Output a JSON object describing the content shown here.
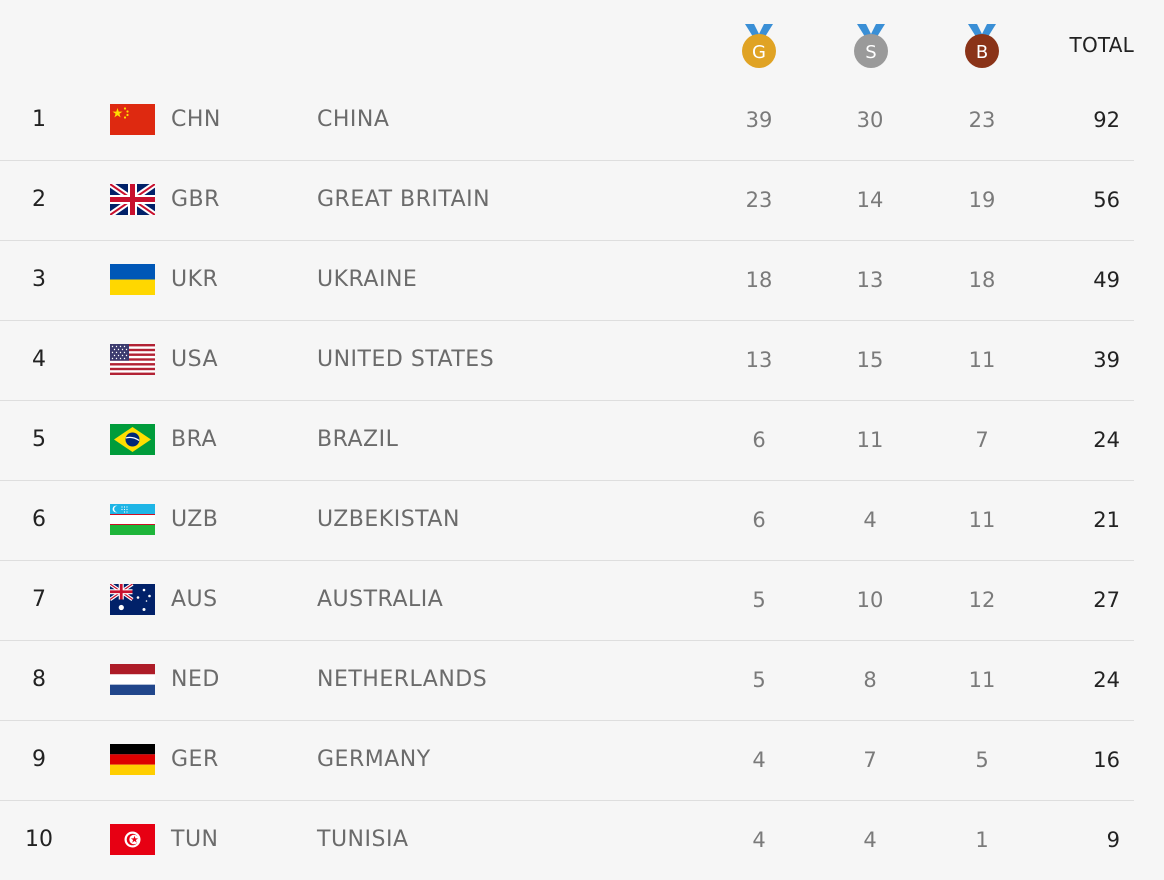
{
  "header": {
    "gold_letter": "G",
    "silver_letter": "S",
    "bronze_letter": "B",
    "total_label": "TOTAL",
    "medal_colors": {
      "gold": "#e0a324",
      "silver": "#9a9a9a",
      "bronze": "#8a3318",
      "ribbon": "#3a8fd6"
    }
  },
  "rows": [
    {
      "rank": "1",
      "flag": "flag-china-icon",
      "code": "CHN",
      "country": "CHINA",
      "gold": "39",
      "silver": "30",
      "bronze": "23",
      "total": "92"
    },
    {
      "rank": "2",
      "flag": "flag-great-britain-icon",
      "code": "GBR",
      "country": "GREAT BRITAIN",
      "gold": "23",
      "silver": "14",
      "bronze": "19",
      "total": "56"
    },
    {
      "rank": "3",
      "flag": "flag-ukraine-icon",
      "code": "UKR",
      "country": "UKRAINE",
      "gold": "18",
      "silver": "13",
      "bronze": "18",
      "total": "49"
    },
    {
      "rank": "4",
      "flag": "flag-usa-icon",
      "code": "USA",
      "country": "UNITED STATES",
      "gold": "13",
      "silver": "15",
      "bronze": "11",
      "total": "39"
    },
    {
      "rank": "5",
      "flag": "flag-brazil-icon",
      "code": "BRA",
      "country": "BRAZIL",
      "gold": "6",
      "silver": "11",
      "bronze": "7",
      "total": "24"
    },
    {
      "rank": "6",
      "flag": "flag-uzbekistan-icon",
      "code": "UZB",
      "country": "UZBEKISTAN",
      "gold": "6",
      "silver": "4",
      "bronze": "11",
      "total": "21"
    },
    {
      "rank": "7",
      "flag": "flag-australia-icon",
      "code": "AUS",
      "country": "AUSTRALIA",
      "gold": "5",
      "silver": "10",
      "bronze": "12",
      "total": "27"
    },
    {
      "rank": "8",
      "flag": "flag-netherlands-icon",
      "code": "NED",
      "country": "NETHERLANDS",
      "gold": "5",
      "silver": "8",
      "bronze": "11",
      "total": "24"
    },
    {
      "rank": "9",
      "flag": "flag-germany-icon",
      "code": "GER",
      "country": "GERMANY",
      "gold": "4",
      "silver": "7",
      "bronze": "5",
      "total": "16"
    },
    {
      "rank": "10",
      "flag": "flag-tunisia-icon",
      "code": "TUN",
      "country": "TUNISIA",
      "gold": "4",
      "silver": "4",
      "bronze": "1",
      "total": "9"
    }
  ]
}
